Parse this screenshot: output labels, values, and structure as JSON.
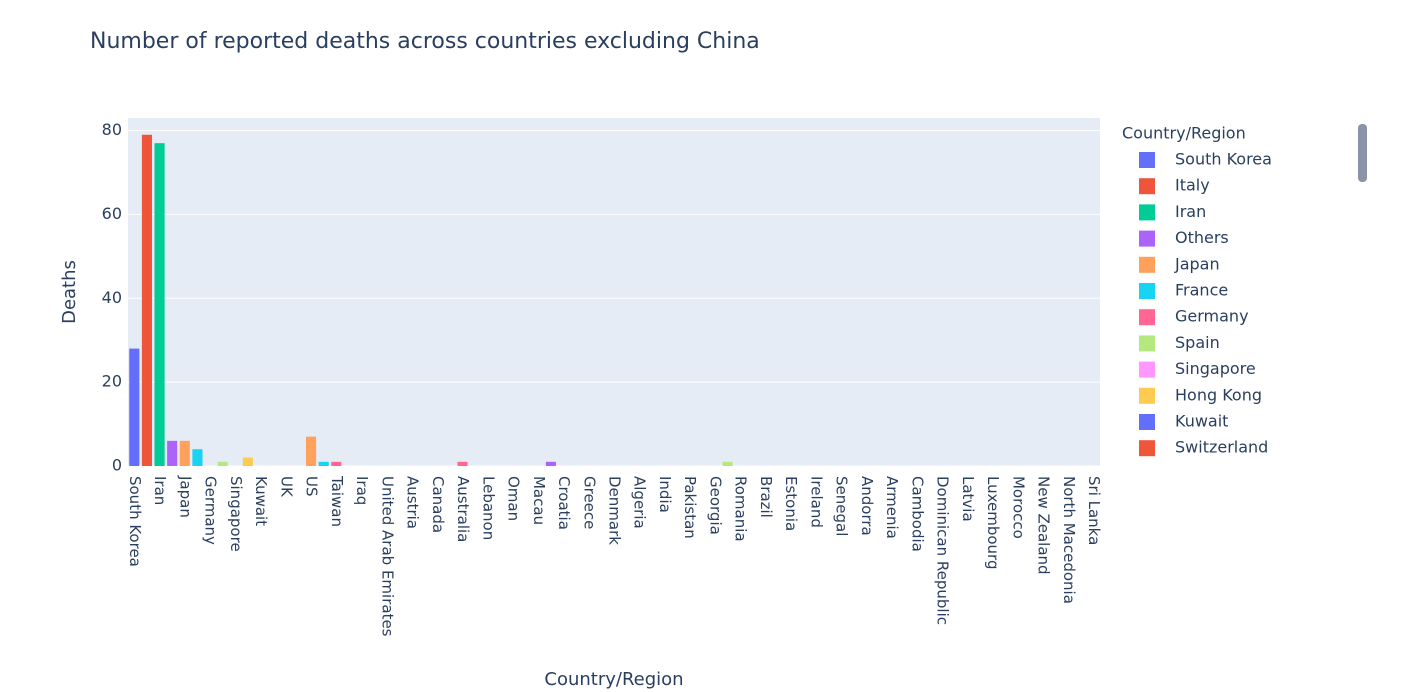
{
  "chart_data": {
    "type": "bar",
    "title": "Number of reported deaths across countries excluding China",
    "x_label": "Country/Region",
    "y_label": "Deaths",
    "legend_title": "Country/Region",
    "categories": [
      "South Korea",
      null,
      "Iran",
      null,
      "Japan",
      null,
      "Germany",
      null,
      "Singapore",
      null,
      "Kuwait",
      null,
      "UK",
      null,
      "US",
      null,
      "Taiwan",
      null,
      "Iraq",
      null,
      "United Arab Emirates",
      null,
      "Austria",
      null,
      "Canada",
      null,
      "Australia",
      null,
      "Lebanon",
      null,
      "Oman",
      null,
      "Macau",
      null,
      "Croatia",
      null,
      "Greece",
      null,
      "Denmark",
      null,
      "Algeria",
      null,
      "India",
      null,
      "Pakistan",
      null,
      "Georgia",
      null,
      "Romania",
      null,
      "Brazil",
      null,
      "Estonia",
      null,
      "Ireland",
      null,
      "Senegal",
      null,
      "Andorra",
      null,
      "Armenia",
      null,
      "Cambodia",
      null,
      "Dominican Republic",
      null,
      "Latvia",
      null,
      "Luxembourg",
      null,
      "Morocco",
      null,
      "New Zealand",
      null,
      "North Macedonia",
      null,
      "Sri Lanka"
    ],
    "values": [
      28,
      79,
      77,
      6,
      6,
      4,
      0,
      1,
      0,
      2,
      0,
      0,
      0,
      0,
      7,
      1,
      1,
      0,
      0,
      0,
      0,
      0,
      0,
      0,
      0,
      0,
      1,
      0,
      0,
      0,
      0,
      0,
      0,
      1,
      0,
      0,
      0,
      0,
      0,
      0,
      0,
      0,
      0,
      0,
      0,
      0,
      0,
      1,
      0,
      0,
      0,
      0,
      0,
      0,
      0,
      0,
      0,
      0,
      0,
      0,
      0,
      0,
      0,
      0,
      0,
      0,
      0,
      0,
      0,
      0,
      0,
      0,
      0,
      0,
      0,
      0,
      0
    ],
    "palette": [
      "#636efa",
      "#EF553B",
      "#00cc96",
      "#ab63fa",
      "#FFA15A",
      "#19d3f3",
      "#FF6692",
      "#B6E880",
      "#FF97FF",
      "#FECB52"
    ],
    "legend": [
      "South Korea",
      "Italy",
      "Iran",
      "Others",
      "Japan",
      "France",
      "Germany",
      "Spain",
      "Singapore",
      "Hong Kong",
      "Kuwait",
      "Switzerland"
    ],
    "ylim": [
      0,
      83
    ],
    "yticks": [
      0,
      20,
      40,
      60,
      80
    ],
    "grid": true
  }
}
